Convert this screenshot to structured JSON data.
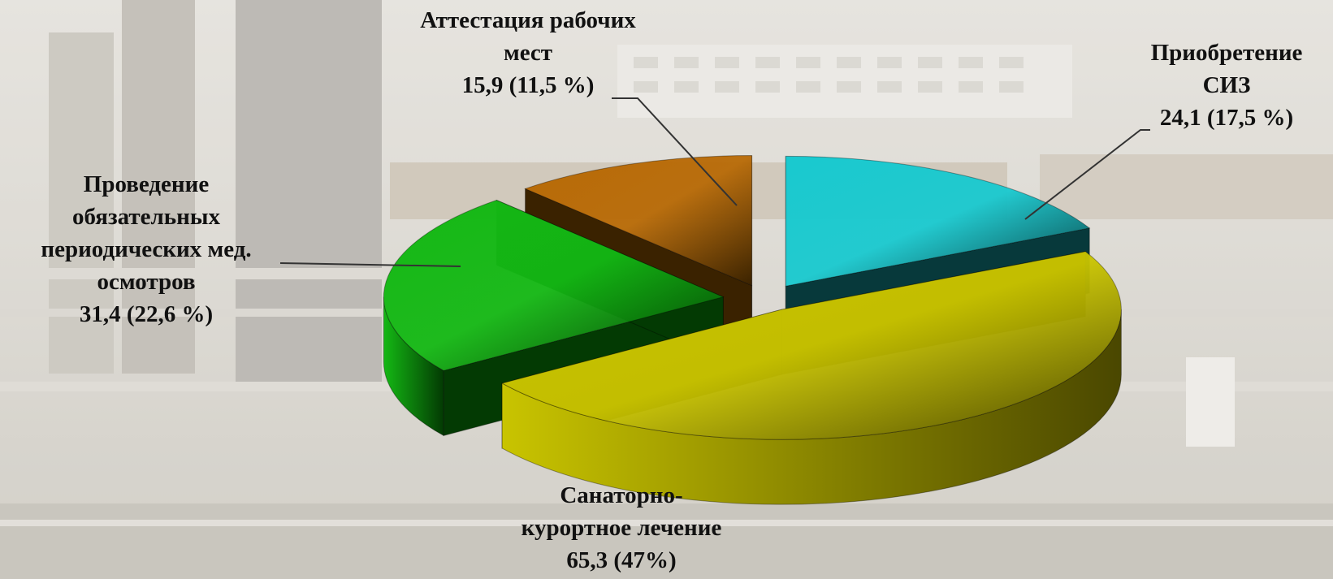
{
  "chart_data": {
    "type": "pie",
    "slices": [
      {
        "name_lines": [
          "Приобретение",
          "СИЗ"
        ],
        "value": 24.1,
        "value_label": "24,1 (17,5 %)",
        "color": "#19c9cf",
        "dark": "#07393b"
      },
      {
        "name_lines": [
          "Санаторно-",
          "курортное лечение"
        ],
        "value": 65.3,
        "value_label": "65,3 (47%)",
        "color": "#c9c400",
        "dark": "#4a4700"
      },
      {
        "name_lines": [
          "Проведение",
          "обязательных",
          "периодических мед.",
          "осмотров"
        ],
        "value": 31.4,
        "value_label": "31,4 (22,6 %)",
        "color": "#14b814",
        "dark": "#033a03"
      },
      {
        "name_lines": [
          "Аттестация рабочих",
          "мест"
        ],
        "value": 15.9,
        "value_label": "15,9 (11,5 %)",
        "color": "#b86a06",
        "dark": "#3a2200"
      }
    ]
  }
}
